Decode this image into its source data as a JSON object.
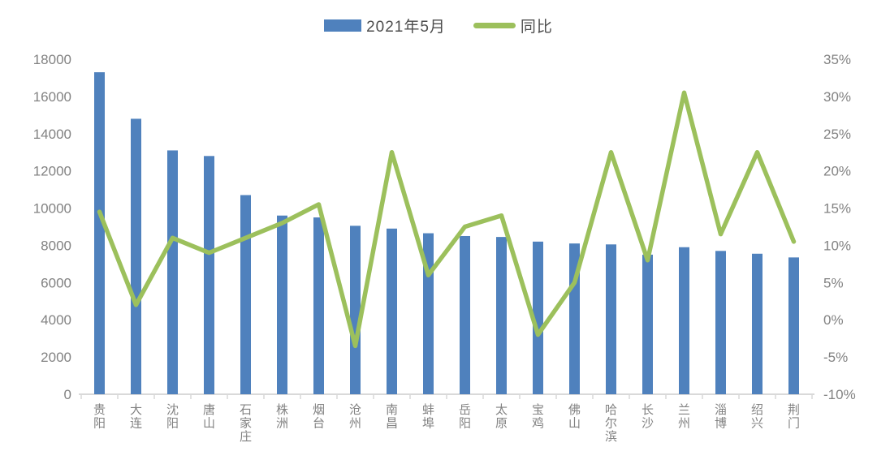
{
  "chart_data": {
    "type": "bar",
    "subtype": "combo-bar-line",
    "title": "",
    "categories": [
      "贵阳",
      "大连",
      "沈阳",
      "唐山",
      "石家庄",
      "株洲",
      "烟台",
      "沧州",
      "南昌",
      "蚌埠",
      "岳阳",
      "太原",
      "宝鸡",
      "佛山",
      "哈尔滨",
      "长沙",
      "兰州",
      "淄博",
      "绍兴",
      "荆门"
    ],
    "series": [
      {
        "name": "2021年5月",
        "type": "bar",
        "axis": "left",
        "color": "#4f81bd",
        "values": [
          17300,
          14800,
          13100,
          12800,
          10700,
          9600,
          9500,
          9050,
          8900,
          8650,
          8500,
          8450,
          8200,
          8100,
          8050,
          7500,
          7900,
          7700,
          7550,
          7350
        ]
      },
      {
        "name": "同比",
        "type": "line",
        "axis": "right",
        "color": "#9cc05c",
        "values": [
          14.5,
          2,
          11,
          9,
          11,
          13,
          15.5,
          -3.5,
          22.5,
          6,
          12.5,
          14,
          -2,
          5,
          22.5,
          8,
          30.5,
          11.5,
          22.5,
          10.5
        ]
      }
    ],
    "left_axis": {
      "min": 0,
      "max": 18000,
      "step": 2000,
      "tick_labels": [
        "0",
        "2000",
        "4000",
        "6000",
        "8000",
        "10000",
        "12000",
        "14000",
        "16000",
        "18000"
      ]
    },
    "right_axis": {
      "min": -10,
      "max": 35,
      "step": 5,
      "format": "percent",
      "tick_labels": [
        "-10%",
        "-5%",
        "0%",
        "5%",
        "10%",
        "15%",
        "20%",
        "25%",
        "30%",
        "35%"
      ]
    },
    "legend_position": "top",
    "grid": false,
    "colors": {
      "axis_text": "#828282",
      "category_text": "#828282",
      "legend_text": "#4d4d4d",
      "axis_line": "#d9d9d9",
      "background": "#ffffff"
    }
  }
}
